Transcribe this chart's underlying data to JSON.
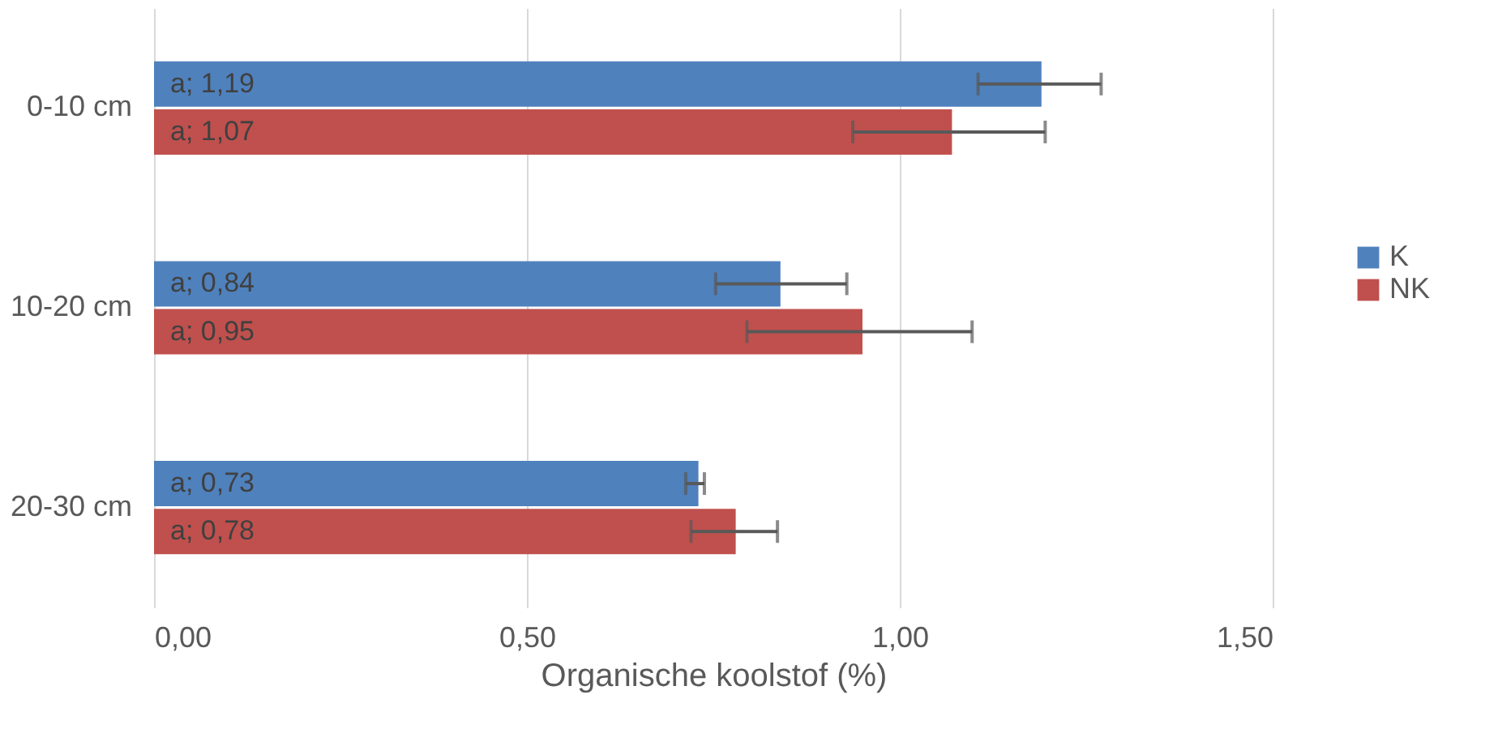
{
  "chart_data": {
    "type": "bar",
    "orientation": "horizontal",
    "xlabel": "Organische koolstof (%)",
    "categories": [
      "0-10 cm",
      "10-20 cm",
      "20-30 cm"
    ],
    "series": [
      {
        "name": "K",
        "color": "#4f81bd",
        "values": [
          1.19,
          0.84,
          0.73
        ],
        "errors": [
          [
            1.105,
            1.27
          ],
          [
            0.753,
            0.929
          ],
          [
            0.713,
            0.738
          ]
        ],
        "value_labels": [
          "a; 1,19",
          "a; 0,84",
          "a; 0,73"
        ]
      },
      {
        "name": "NK",
        "color": "#c0504d",
        "values": [
          1.07,
          0.95,
          0.78
        ],
        "errors": [
          [
            0.937,
            1.195
          ],
          [
            0.795,
            1.097
          ],
          [
            0.72,
            0.836
          ]
        ],
        "value_labels": [
          "a; 1,07",
          "a; 0,95",
          "a; 0,78"
        ]
      }
    ],
    "xlim": [
      0,
      1.5
    ],
    "xticks": [
      {
        "value": 0,
        "label": "0,00"
      },
      {
        "value": 0.5,
        "label": "0,50"
      },
      {
        "value": 1,
        "label": "1,00"
      },
      {
        "value": 1.5,
        "label": "1,50"
      }
    ],
    "grid": "x",
    "legend": "right"
  }
}
